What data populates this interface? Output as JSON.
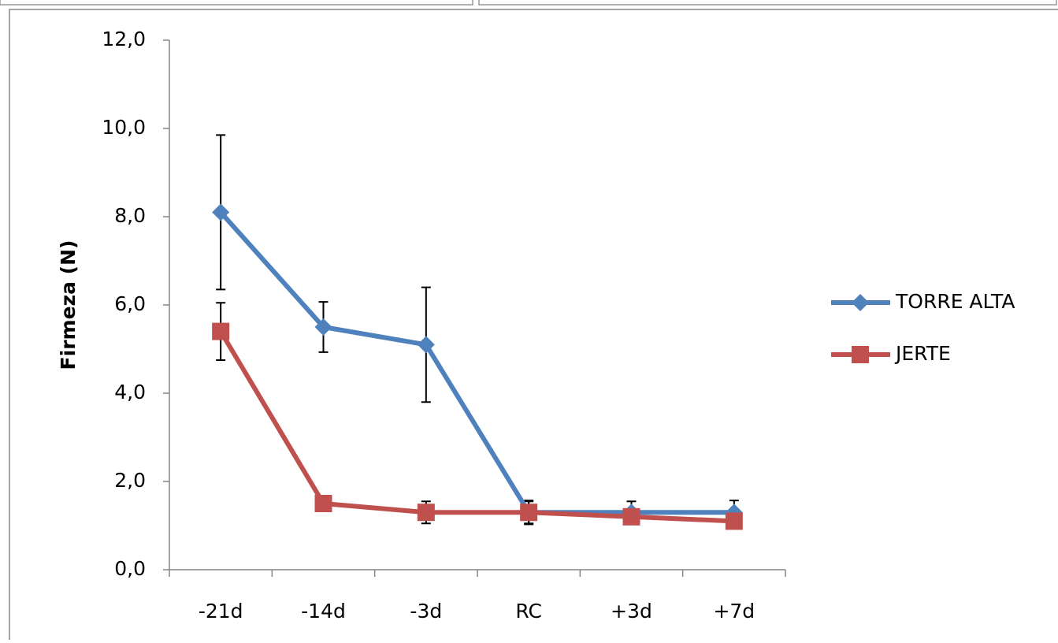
{
  "chart_data": {
    "type": "line",
    "y_label": "Firmeza (N)",
    "categories": [
      "-21d",
      "-14d",
      "-3d",
      "RC",
      "+3d",
      "+7d"
    ],
    "series": [
      {
        "name": "TORRE ALTA",
        "color": "#4f81bd",
        "marker": "diamond",
        "values": [
          8.1,
          5.5,
          5.1,
          1.3,
          1.3,
          1.3
        ],
        "errors": [
          1.75,
          0.57,
          1.3,
          0.25,
          0.25,
          0.27
        ]
      },
      {
        "name": "JERTE",
        "color": "#c0504d",
        "marker": "square",
        "values": [
          5.4,
          1.5,
          1.3,
          1.3,
          1.2,
          1.1
        ],
        "errors": [
          0.65,
          0.05,
          0.25,
          0.27,
          0.05,
          0.05
        ]
      }
    ],
    "ylim": [
      0,
      12
    ],
    "yticks": [
      {
        "value": 0,
        "label": "0,0"
      },
      {
        "value": 2,
        "label": "2,0"
      },
      {
        "value": 4,
        "label": "4,0"
      },
      {
        "value": 6,
        "label": "6,0"
      },
      {
        "value": 8,
        "label": "8,0"
      },
      {
        "value": 10,
        "label": "10,0"
      },
      {
        "value": 12,
        "label": "12,0"
      }
    ],
    "legend": "right"
  }
}
